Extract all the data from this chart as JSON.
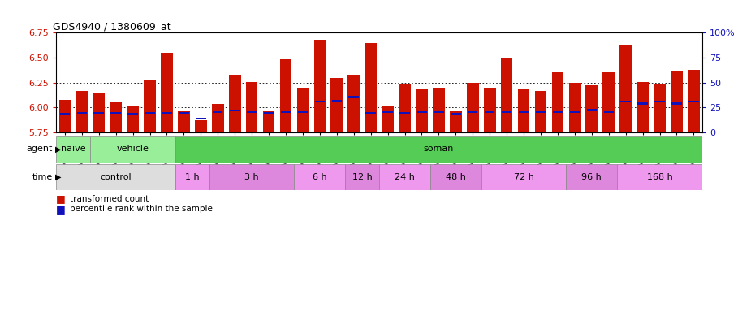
{
  "title": "GDS4940 / 1380609_at",
  "samples": [
    "GSM338857",
    "GSM338858",
    "GSM338859",
    "GSM338862",
    "GSM338864",
    "GSM338877",
    "GSM338880",
    "GSM338860",
    "GSM338861",
    "GSM338863",
    "GSM338865",
    "GSM338866",
    "GSM338867",
    "GSM338868",
    "GSM338869",
    "GSM338870",
    "GSM338871",
    "GSM338872",
    "GSM338873",
    "GSM338874",
    "GSM338875",
    "GSM338876",
    "GSM338878",
    "GSM338879",
    "GSM338881",
    "GSM338882",
    "GSM338883",
    "GSM338884",
    "GSM338885",
    "GSM338886",
    "GSM338887",
    "GSM338888",
    "GSM338889",
    "GSM338890",
    "GSM338891",
    "GSM338892",
    "GSM338893",
    "GSM338894"
  ],
  "transformed_count": [
    6.08,
    6.17,
    6.15,
    6.06,
    6.01,
    6.28,
    6.55,
    5.96,
    5.87,
    6.04,
    6.33,
    6.26,
    5.97,
    6.48,
    6.2,
    6.68,
    6.3,
    6.33,
    6.65,
    6.02,
    6.24,
    6.18,
    6.2,
    5.97,
    6.25,
    6.2,
    6.5,
    6.19,
    6.17,
    6.35,
    6.25,
    6.22,
    6.35,
    6.63,
    6.26,
    6.24,
    6.37,
    6.38
  ],
  "percentile_rank": [
    19,
    20,
    20,
    20,
    19,
    20,
    20,
    20,
    14,
    21,
    22,
    21,
    20,
    21,
    21,
    31,
    32,
    36,
    20,
    21,
    20,
    21,
    21,
    19,
    21,
    21,
    21,
    21,
    21,
    21,
    21,
    23,
    21,
    31,
    29,
    31,
    29,
    31
  ],
  "y_min": 5.75,
  "y_max": 6.75,
  "y_ticks": [
    5.75,
    6.0,
    6.25,
    6.5,
    6.75
  ],
  "y2_ticks": [
    0,
    25,
    50,
    75,
    100
  ],
  "bar_color": "#cc1100",
  "percentile_color": "#1111bb",
  "agent_spans": [
    {
      "label": "naive",
      "start": 0,
      "end": 1,
      "color": "#99ee99"
    },
    {
      "label": "vehicle",
      "start": 2,
      "end": 6,
      "color": "#99ee99"
    },
    {
      "label": "soman",
      "start": 7,
      "end": 37,
      "color": "#55cc55"
    }
  ],
  "time_spans": [
    {
      "label": "control",
      "start": 0,
      "end": 6,
      "color": "#dddddd"
    },
    {
      "label": "1 h",
      "start": 7,
      "end": 8,
      "color": "#ee99ee"
    },
    {
      "label": "3 h",
      "start": 9,
      "end": 13,
      "color": "#dd88dd"
    },
    {
      "label": "6 h",
      "start": 14,
      "end": 16,
      "color": "#ee99ee"
    },
    {
      "label": "12 h",
      "start": 17,
      "end": 18,
      "color": "#dd88dd"
    },
    {
      "label": "24 h",
      "start": 19,
      "end": 21,
      "color": "#ee99ee"
    },
    {
      "label": "48 h",
      "start": 22,
      "end": 24,
      "color": "#dd88dd"
    },
    {
      "label": "72 h",
      "start": 25,
      "end": 29,
      "color": "#ee99ee"
    },
    {
      "label": "96 h",
      "start": 30,
      "end": 32,
      "color": "#dd88dd"
    },
    {
      "label": "168 h",
      "start": 33,
      "end": 37,
      "color": "#ee99ee"
    }
  ],
  "chart_bg": "#ffffff",
  "plot_bg": "#ffffff"
}
